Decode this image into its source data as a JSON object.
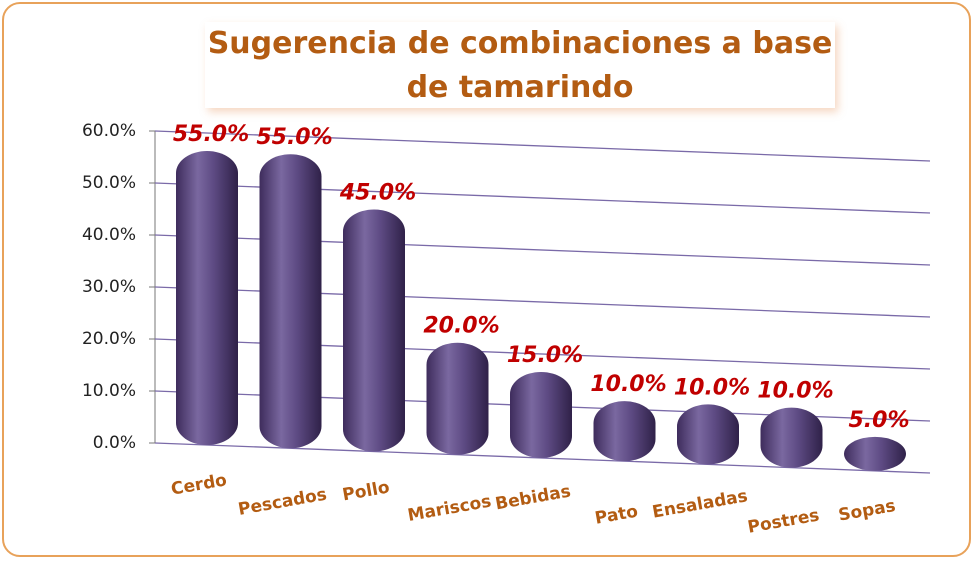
{
  "chart_data": {
    "type": "bar",
    "title": "Sugerencia de combinaciones a base de tamarindo",
    "categories": [
      "Cerdo",
      "Pescados",
      "Pollo",
      "Mariscos",
      "Bebidas",
      "Pato",
      "Ensaladas",
      "Postres",
      "Sopas"
    ],
    "values": [
      55,
      55,
      45,
      20,
      15,
      10,
      10,
      10,
      5
    ],
    "value_labels": [
      "55.0%",
      "55.0%",
      "45.0%",
      "20.0%",
      "15.0%",
      "10.0%",
      "10.0%",
      "10.0%",
      "5.0%"
    ],
    "color": "#5e4b84",
    "ylim": [
      0,
      60
    ],
    "yticks": [
      {
        "value": 0,
        "label": "0.0%"
      },
      {
        "value": 10,
        "label": "10.0%"
      },
      {
        "value": 20,
        "label": "20.0%"
      },
      {
        "value": 30,
        "label": "30.0%"
      },
      {
        "value": 40,
        "label": "40.0%"
      },
      {
        "value": 50,
        "label": "50.0%"
      },
      {
        "value": 60,
        "label": "60.0%"
      }
    ],
    "grid": true
  }
}
